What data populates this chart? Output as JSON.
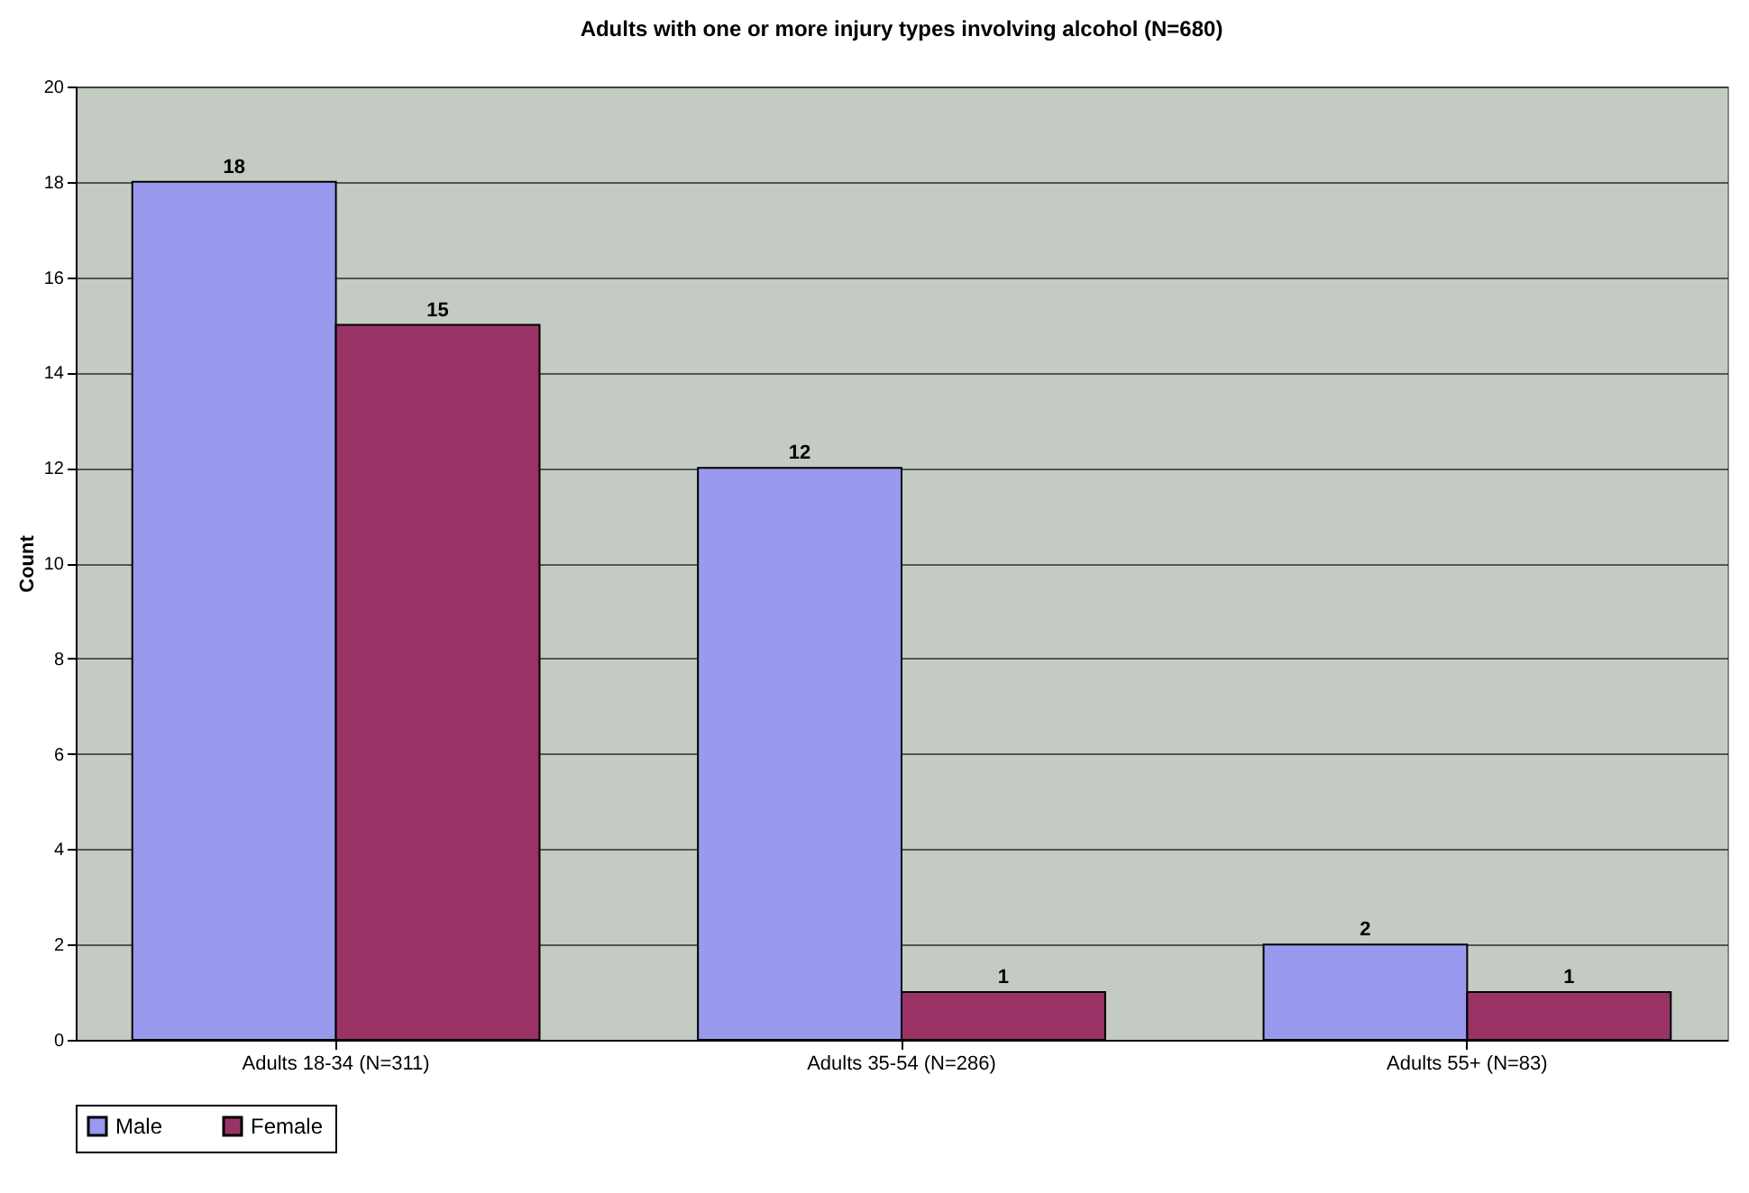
{
  "chart_data": {
    "type": "bar",
    "title": "Adults with one or more injury types involving alcohol (N=680)",
    "ylabel": "Count",
    "categories": [
      "Adults 18-34 (N=311)",
      "Adults 35-54 (N=286)",
      "Adults 55+ (N=83)"
    ],
    "series": [
      {
        "name": "Male",
        "color": "#9999ee",
        "values": [
          18,
          12,
          2
        ]
      },
      {
        "name": "Female",
        "color": "#993366",
        "values": [
          15,
          1,
          1
        ]
      }
    ],
    "ylim": [
      0,
      20
    ],
    "yticks": [
      0,
      2,
      4,
      6,
      8,
      10,
      12,
      14,
      16,
      18,
      20
    ],
    "grid": "y",
    "legend": "bottom",
    "data_labels": true
  }
}
